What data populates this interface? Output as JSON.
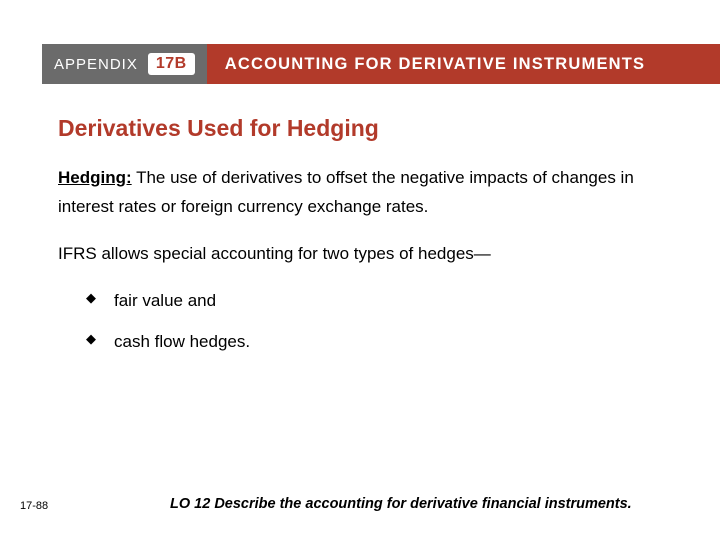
{
  "header": {
    "appendix_label": "APPENDIX",
    "appendix_number": "17B",
    "title": "ACCOUNTING FOR DERIVATIVE INSTRUMENTS"
  },
  "content": {
    "heading": "Derivatives Used for Hedging",
    "term": "Hedging:",
    "definition_rest": "  The use of derivatives to offset the negative impacts of changes in interest rates or foreign currency exchange rates.",
    "para2": "IFRS allows special accounting for two types of hedges—",
    "bullets": [
      "fair value and",
      "cash flow hedges."
    ]
  },
  "footer": {
    "page_number": "17-88",
    "learning_objective": "LO 12  Describe the accounting for derivative financial instruments."
  },
  "colors": {
    "accent": "#b23a2a",
    "grey": "#6b6b6b",
    "text": "#000000",
    "bg": "#ffffff"
  }
}
